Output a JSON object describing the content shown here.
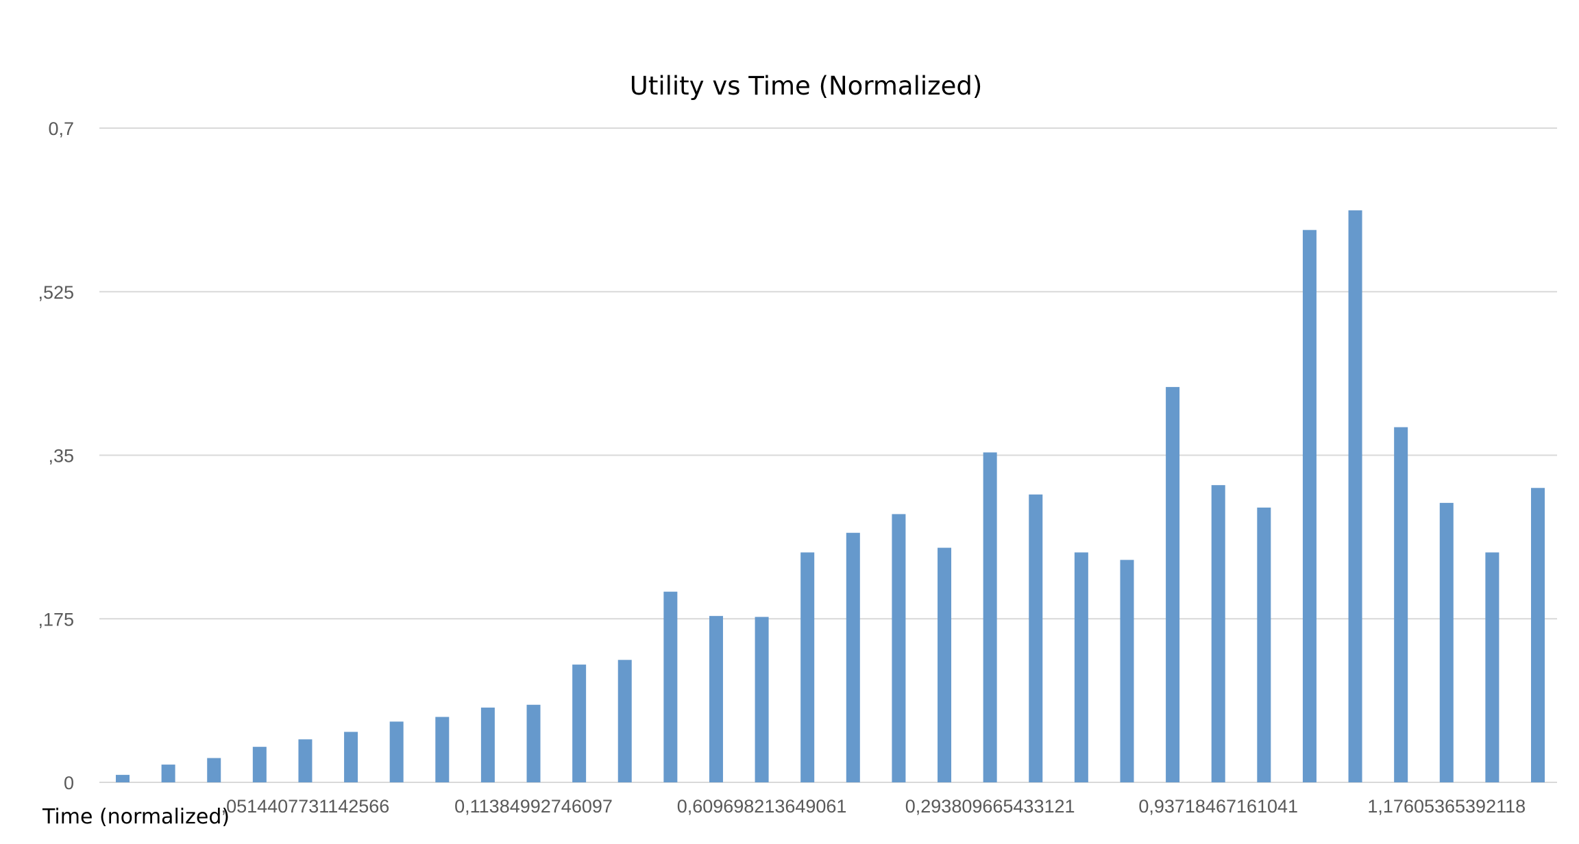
{
  "chart_data": {
    "type": "bar",
    "title": "Utility vs Time (Normalized)",
    "xlabel": "Time (normalized)",
    "ylabel": "",
    "ylim": [
      0,
      0.7
    ],
    "yticks": [
      "0",
      ",175",
      ",35",
      ",525",
      "0,7"
    ],
    "ytick_values": [
      0,
      0.175,
      0.35,
      0.525,
      0.7
    ],
    "xtick_labels": [
      ",0514407731142566",
      "0,11384992746097",
      "0,609698213649061",
      "0,293809665433121",
      "0,93718467161041",
      "1,17605365392118"
    ],
    "xtick_positions": [
      4,
      9,
      14,
      19,
      24,
      29
    ],
    "grid": true,
    "legend": "none",
    "color": "#6699cc",
    "values": [
      0.008,
      0.019,
      0.026,
      0.038,
      0.046,
      0.054,
      0.065,
      0.07,
      0.08,
      0.083,
      0.126,
      0.131,
      0.204,
      0.178,
      0.177,
      0.246,
      0.267,
      0.287,
      0.251,
      0.353,
      0.308,
      0.246,
      0.238,
      0.423,
      0.318,
      0.294,
      0.591,
      0.612,
      0.38,
      0.299,
      0.246,
      0.315
    ]
  }
}
